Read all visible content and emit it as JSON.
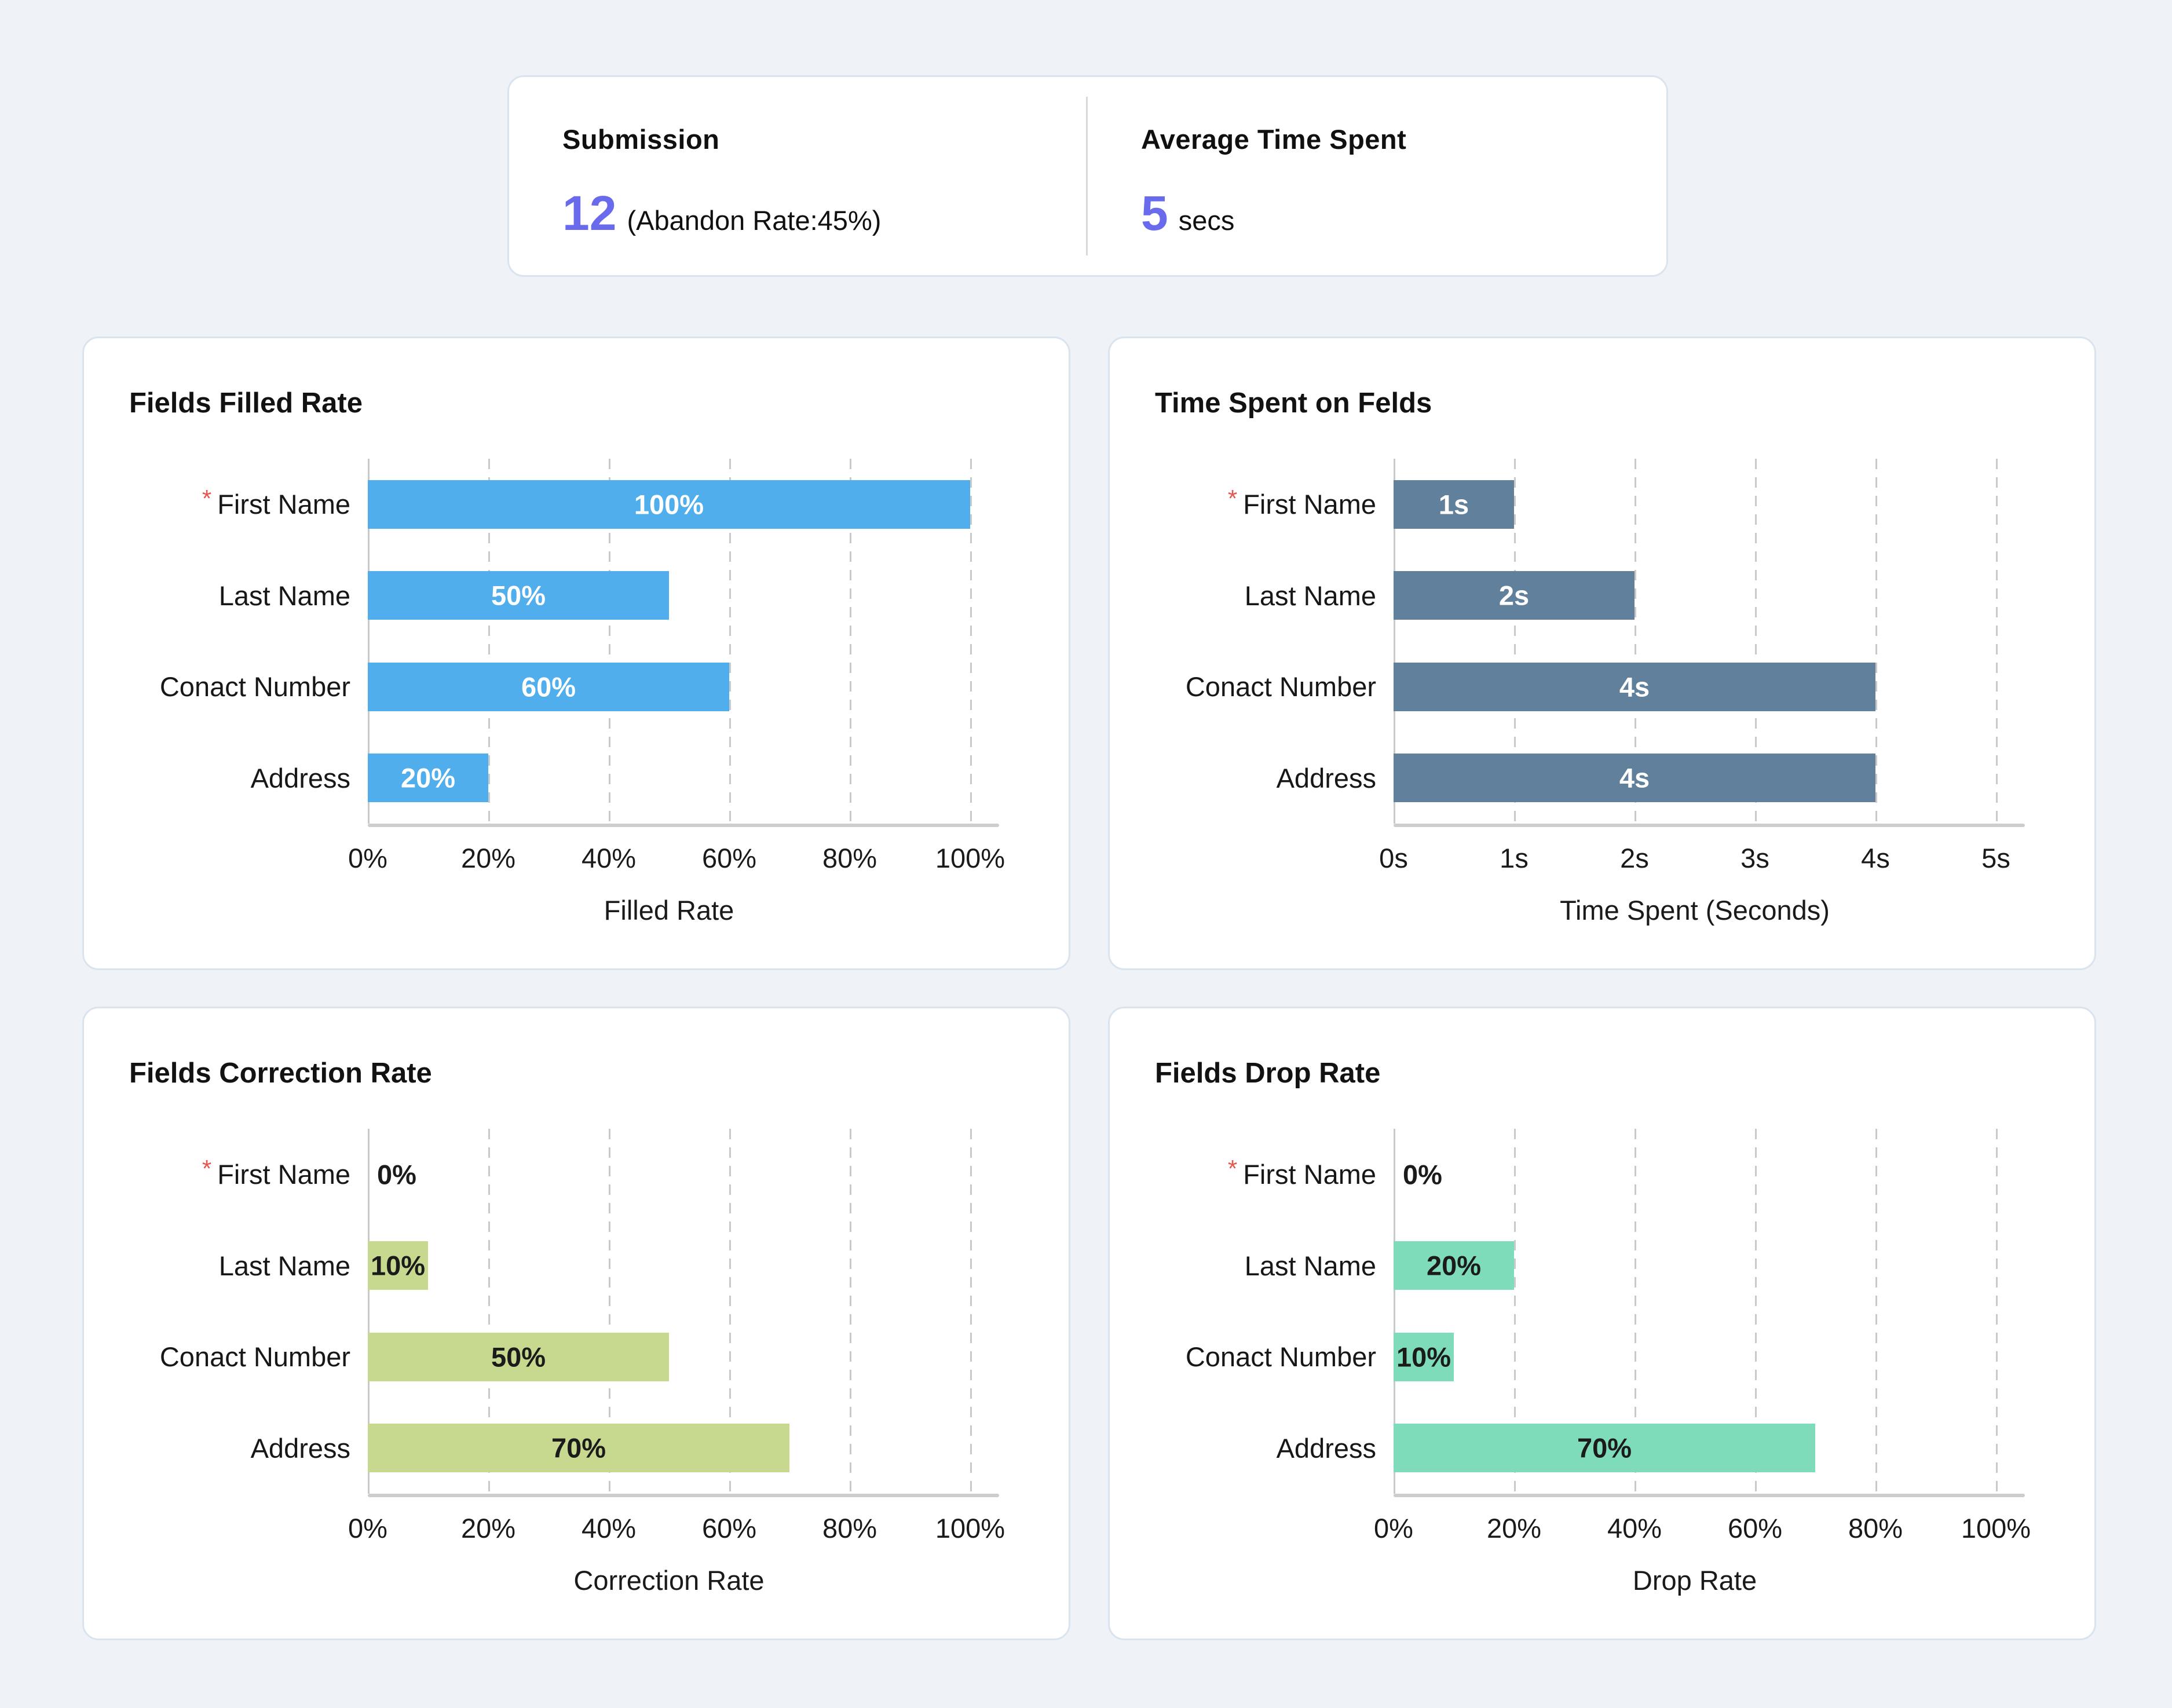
{
  "summary": {
    "submission_label": "Submission",
    "submission_value": "12",
    "submission_note": "(Abandon Rate:45%)",
    "avg_time_label": "Average Time Spent",
    "avg_time_value": "5",
    "avg_time_unit": "secs"
  },
  "colors": {
    "page_background": "#eff3f7",
    "card_border": "#d9e4ef",
    "accent_purple": "#6a6aec",
    "required_asterisk_red": "#e8544e",
    "filled_rate_blue": "#4faeeb",
    "time_spent_slate": "#61809b",
    "correction_rate_green": "#c7d98f",
    "drop_rate_teal": "#7edcbb",
    "gridline_gray": "#c9c9c9"
  },
  "chart_data": [
    {
      "type": "bar",
      "orientation": "horizontal",
      "title": "Fields Filled Rate",
      "categories": [
        {
          "label": "First Name",
          "required": true
        },
        {
          "label": "Last Name",
          "required": false
        },
        {
          "label": "Conact Number",
          "required": false
        },
        {
          "label": "Address",
          "required": false
        }
      ],
      "values": [
        100,
        50,
        60,
        20
      ],
      "value_labels": [
        "100%",
        "50%",
        "60%",
        "20%"
      ],
      "xlabel": "Filled Rate",
      "x_ticks": [
        "0%",
        "20%",
        "40%",
        "60%",
        "80%",
        "100%"
      ],
      "xlim": [
        0,
        100
      ],
      "grid": "dashed-vertical",
      "legend": "none",
      "bar_color": "#4faeeb",
      "value_label_color": "#ffffff",
      "zero_label_color": "#1b1b1b"
    },
    {
      "type": "bar",
      "orientation": "horizontal",
      "title": "Time Spent on Felds",
      "categories": [
        {
          "label": "First Name",
          "required": true
        },
        {
          "label": "Last Name",
          "required": false
        },
        {
          "label": "Conact Number",
          "required": false
        },
        {
          "label": "Address",
          "required": false
        }
      ],
      "values": [
        1,
        2,
        4,
        4
      ],
      "value_labels": [
        "1s",
        "2s",
        "4s",
        "4s"
      ],
      "xlabel": "Time Spent (Seconds)",
      "x_ticks": [
        "0s",
        "1s",
        "2s",
        "3s",
        "4s",
        "5s"
      ],
      "xlim": [
        0,
        5
      ],
      "grid": "dashed-vertical",
      "legend": "none",
      "bar_color": "#61809b",
      "value_label_color": "#ffffff",
      "zero_label_color": "#1b1b1b"
    },
    {
      "type": "bar",
      "orientation": "horizontal",
      "title": "Fields Correction Rate",
      "categories": [
        {
          "label": "First Name",
          "required": true
        },
        {
          "label": "Last Name",
          "required": false
        },
        {
          "label": "Conact Number",
          "required": false
        },
        {
          "label": "Address",
          "required": false
        }
      ],
      "values": [
        0,
        10,
        50,
        70
      ],
      "value_labels": [
        "0%",
        "10%",
        "50%",
        "70%"
      ],
      "xlabel": "Correction Rate",
      "x_ticks": [
        "0%",
        "20%",
        "40%",
        "60%",
        "80%",
        "100%"
      ],
      "xlim": [
        0,
        100
      ],
      "grid": "dashed-vertical",
      "legend": "none",
      "bar_color": "#c7d98f",
      "value_label_color": "#1b1b1b",
      "zero_label_color": "#1b1b1b"
    },
    {
      "type": "bar",
      "orientation": "horizontal",
      "title": "Fields Drop Rate",
      "categories": [
        {
          "label": "First Name",
          "required": true
        },
        {
          "label": "Last Name",
          "required": false
        },
        {
          "label": "Conact Number",
          "required": false
        },
        {
          "label": "Address",
          "required": false
        }
      ],
      "values": [
        0,
        20,
        10,
        70
      ],
      "value_labels": [
        "0%",
        "20%",
        "10%",
        "70%"
      ],
      "xlabel": "Drop Rate",
      "x_ticks": [
        "0%",
        "20%",
        "40%",
        "60%",
        "80%",
        "100%"
      ],
      "xlim": [
        0,
        100
      ],
      "grid": "dashed-vertical",
      "legend": "none",
      "bar_color": "#7edcbb",
      "value_label_color": "#1b1b1b",
      "zero_label_color": "#1b1b1b"
    }
  ]
}
